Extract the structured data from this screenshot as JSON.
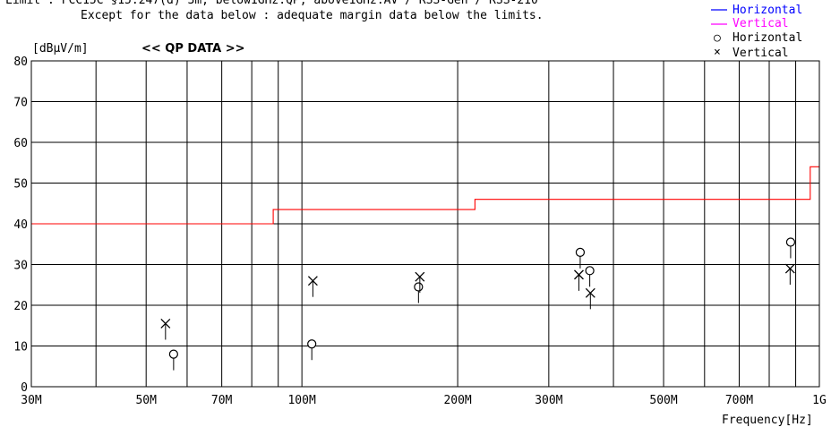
{
  "header": {
    "limit_line": "Limit : FCC15C §15.247(d) 3m, below1GHz:QP, above1GHz:AV / RSS-Gen / RSS-210",
    "except_line": "Except for the  data below : adequate margin data below the limits."
  },
  "legend": {
    "line_horizontal": "Horizontal",
    "line_vertical": "Vertical",
    "marker_horizontal": "Horizontal",
    "marker_vertical": "Vertical",
    "marker_horizontal_symbol": "○",
    "marker_vertical_symbol": "×",
    "colors": {
      "horizontal": "#0000ff",
      "vertical": "#ff00ff"
    }
  },
  "chart_data": {
    "type": "scatter",
    "title": "<< QP DATA >>",
    "ylabel": "[dBμV/m]",
    "xlabel": "Frequency[Hz]",
    "xscale": "log",
    "xlim": [
      30,
      1000
    ],
    "ylim": [
      0,
      80
    ],
    "grid": true,
    "x_ticks": [
      {
        "value": 30,
        "label": "30M"
      },
      {
        "value": 50,
        "label": "50M"
      },
      {
        "value": 70,
        "label": "70M"
      },
      {
        "value": 100,
        "label": "100M"
      },
      {
        "value": 200,
        "label": "200M"
      },
      {
        "value": 300,
        "label": "300M"
      },
      {
        "value": 500,
        "label": "500M"
      },
      {
        "value": 700,
        "label": "700M"
      },
      {
        "value": 1000,
        "label": "1G"
      }
    ],
    "x_gridlines": [
      40,
      50,
      60,
      70,
      80,
      90,
      100,
      200,
      300,
      400,
      500,
      600,
      700,
      800,
      900
    ],
    "y_ticks": [
      0,
      10,
      20,
      30,
      40,
      50,
      60,
      70,
      80
    ],
    "limit_line": {
      "color": "#ff0000",
      "points": [
        [
          30,
          40
        ],
        [
          88,
          40
        ],
        [
          88,
          43.5
        ],
        [
          216,
          43.5
        ],
        [
          216,
          46
        ],
        [
          960,
          46
        ],
        [
          960,
          54
        ],
        [
          1000,
          54
        ]
      ]
    },
    "series": [
      {
        "name": "Horizontal",
        "marker": "circle",
        "points": [
          {
            "x": 56.5,
            "y": 8
          },
          {
            "x": 104.5,
            "y": 10.5
          },
          {
            "x": 168,
            "y": 24.5
          },
          {
            "x": 345,
            "y": 33
          },
          {
            "x": 360,
            "y": 28.5
          },
          {
            "x": 880,
            "y": 35.5
          }
        ]
      },
      {
        "name": "Vertical",
        "marker": "x",
        "points": [
          {
            "x": 54.5,
            "y": 15.5
          },
          {
            "x": 105,
            "y": 26
          },
          {
            "x": 169,
            "y": 27
          },
          {
            "x": 343,
            "y": 27.5
          },
          {
            "x": 361,
            "y": 23
          },
          {
            "x": 878,
            "y": 29
          }
        ]
      }
    ]
  }
}
